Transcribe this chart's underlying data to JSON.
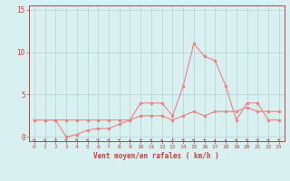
{
  "hours": [
    0,
    1,
    2,
    3,
    4,
    5,
    6,
    7,
    8,
    9,
    10,
    11,
    12,
    13,
    14,
    15,
    16,
    17,
    18,
    19,
    20,
    21,
    22,
    23
  ],
  "rafales": [
    2,
    2,
    2,
    2,
    2,
    2,
    2,
    2,
    2,
    2,
    4,
    4,
    4,
    2.5,
    6,
    11,
    9.5,
    9,
    6,
    2,
    4,
    4,
    2,
    2
  ],
  "moyen": [
    2,
    2,
    2,
    0,
    0.3,
    0.8,
    1,
    1,
    1.5,
    2,
    2.5,
    2.5,
    2.5,
    2,
    2.5,
    3,
    2.5,
    3,
    3,
    3,
    3.5,
    3,
    3,
    3
  ],
  "line_color": "#f08080",
  "marker_color": "#f08080",
  "bg_color": "#d8f0f0",
  "grid_color": "#b8d8d8",
  "axis_color": "#c04040",
  "tick_color": "#c04040",
  "xlabel": "Vent moyen/en rafales ( km/h )",
  "yticks": [
    0,
    5,
    10,
    15
  ],
  "xlim": [
    0,
    23
  ],
  "ylim": [
    -0.5,
    15.5
  ],
  "arrow_angles_deg": [
    180,
    180,
    225,
    180,
    180,
    180,
    180,
    180,
    45,
    90,
    135,
    45,
    90,
    225,
    180,
    180,
    135,
    90,
    90,
    180,
    180,
    180,
    180,
    180
  ]
}
